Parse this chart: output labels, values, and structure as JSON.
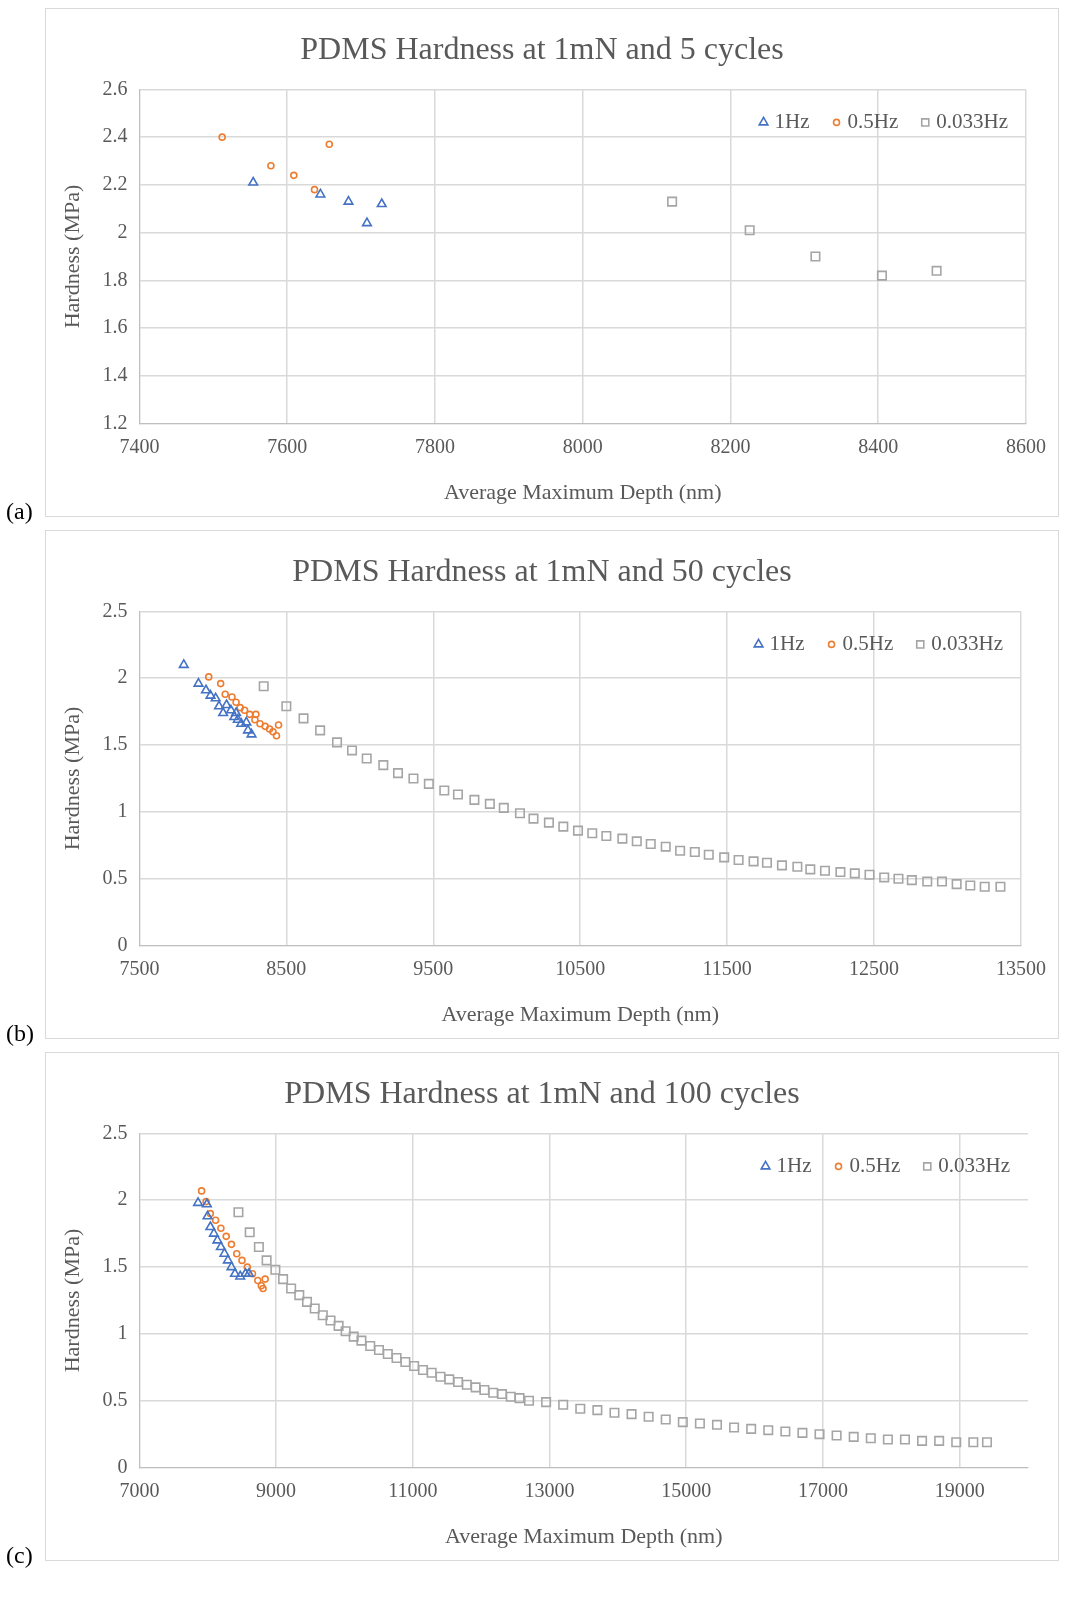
{
  "chart_data": [
    {
      "type": "scatter",
      "title": "PDMS Hardness at 1mN and 5 cycles",
      "xlabel": "Average Maximum Depth (nm)",
      "ylabel": "Hardness (MPa)",
      "annotations": [
        "(a)"
      ],
      "xlim": [
        7400,
        8600
      ],
      "xticks": [
        7400,
        7600,
        7800,
        8000,
        8200,
        8400,
        8600
      ],
      "ylim": [
        1.2,
        2.6
      ],
      "yticks": [
        1.2,
        1.4,
        1.6,
        1.8,
        2,
        2.2,
        2.4,
        2.6
      ],
      "grid": true,
      "legend": "top right",
      "series": [
        {
          "name": "1Hz",
          "color": "#4472c4",
          "marker": "triangle",
          "x": [
            7554,
            7645,
            7683,
            7708,
            7728
          ],
          "values": [
            2.21,
            2.16,
            2.13,
            2.04,
            2.12
          ]
        },
        {
          "name": "0.5Hz",
          "color": "#ed7d31",
          "marker": "circle",
          "x": [
            7512,
            7578,
            7609,
            7637,
            7657
          ],
          "values": [
            2.4,
            2.28,
            2.24,
            2.18,
            2.37
          ]
        },
        {
          "name": "0.033Hz",
          "color": "#a5a5a5",
          "marker": "square",
          "x": [
            8121,
            8226,
            8315,
            8405,
            8479
          ],
          "values": [
            2.13,
            2.01,
            1.9,
            1.82,
            1.84
          ]
        }
      ]
    },
    {
      "type": "scatter",
      "title": "PDMS Hardness at 1mN and 50 cycles",
      "xlabel": "Average Maximum Depth (nm)",
      "ylabel": "Hardness (MPa)",
      "annotations": [
        "(b)"
      ],
      "xlim": [
        7500,
        13500
      ],
      "xticks": [
        7500,
        8500,
        9500,
        10500,
        11500,
        12500,
        13500
      ],
      "ylim": [
        0,
        2.5
      ],
      "yticks": [
        0,
        0.5,
        1,
        1.5,
        2,
        2.5
      ],
      "grid": true,
      "legend": "top right",
      "series": [
        {
          "name": "1Hz",
          "color": "#4472c4",
          "marker": "triangle",
          "x": [
            7802,
            7902,
            7953,
            7984,
            8019,
            8042,
            8070,
            8093,
            8123,
            8146,
            8158,
            8170,
            8193,
            8228,
            8239,
            8263
          ],
          "values": [
            2.1,
            1.96,
            1.91,
            1.87,
            1.85,
            1.79,
            1.74,
            1.8,
            1.76,
            1.71,
            1.74,
            1.69,
            1.66,
            1.67,
            1.61,
            1.58
          ]
        },
        {
          "name": "0.5Hz",
          "color": "#ed7d31",
          "marker": "circle",
          "x": [
            7972,
            8053,
            8084,
            8130,
            8158,
            8186,
            8216,
            8251,
            8286,
            8293,
            8321,
            8356,
            8386,
            8409,
            8433,
            8447
          ],
          "values": [
            2.01,
            1.96,
            1.88,
            1.86,
            1.82,
            1.78,
            1.76,
            1.73,
            1.69,
            1.73,
            1.66,
            1.64,
            1.62,
            1.6,
            1.57,
            1.65
          ]
        },
        {
          "name": "0.033Hz",
          "color": "#a5a5a5",
          "marker": "square",
          "x": [
            8346,
            8500,
            8617,
            8730,
            8845,
            8947,
            9047,
            9160,
            9260,
            9365,
            9470,
            9575,
            9668,
            9780,
            9885,
            9980,
            10090,
            10182,
            10287,
            10385,
            10485,
            10582,
            10678,
            10787,
            10885,
            10980,
            11082,
            11180,
            11280,
            11375,
            11480,
            11578,
            11680,
            11771,
            11873,
            11978,
            12066,
            12166,
            12271,
            12369,
            12469,
            12569,
            12666,
            12757,
            12862,
            12962,
            13062,
            13155,
            13253,
            13360
          ],
          "values": [
            1.94,
            1.79,
            1.7,
            1.61,
            1.52,
            1.46,
            1.4,
            1.35,
            1.29,
            1.25,
            1.21,
            1.16,
            1.13,
            1.09,
            1.06,
            1.03,
            0.99,
            0.95,
            0.92,
            0.89,
            0.86,
            0.84,
            0.82,
            0.8,
            0.78,
            0.76,
            0.74,
            0.71,
            0.7,
            0.68,
            0.66,
            0.64,
            0.63,
            0.62,
            0.6,
            0.59,
            0.57,
            0.56,
            0.55,
            0.54,
            0.53,
            0.51,
            0.5,
            0.49,
            0.48,
            0.48,
            0.46,
            0.45,
            0.44,
            0.44
          ]
        }
      ]
    },
    {
      "type": "scatter",
      "title": "PDMS Hardness at 1mN and 100 cycles",
      "xlabel": "Average Maximum Depth (nm)",
      "ylabel": "Hardness (MPa)",
      "annotations": [
        "(c)"
      ],
      "xlim": [
        7000,
        20000
      ],
      "xticks": [
        7000,
        9000,
        11000,
        13000,
        15000,
        17000,
        19000
      ],
      "ylim": [
        0,
        2.5
      ],
      "yticks": [
        0,
        0.5,
        1,
        1.5,
        2,
        2.5
      ],
      "grid": true,
      "legend": "top right",
      "series": [
        {
          "name": "1Hz",
          "color": "#4472c4",
          "marker": "triangle",
          "x": [
            7858,
            7987,
            7997,
            8038,
            8090,
            8141,
            8192,
            8244,
            8295,
            8347,
            8398,
            8475,
            8552,
            8603
          ],
          "values": [
            1.98,
            1.97,
            1.88,
            1.8,
            1.75,
            1.7,
            1.65,
            1.6,
            1.55,
            1.5,
            1.45,
            1.43,
            1.45,
            1.45
          ]
        },
        {
          "name": "0.5Hz",
          "color": "#ed7d31",
          "marker": "circle",
          "x": [
            7910,
            7976,
            8038,
            8115,
            8192,
            8270,
            8347,
            8424,
            8501,
            8578,
            8655,
            8732,
            8784,
            8809,
            8840
          ],
          "values": [
            2.07,
            1.99,
            1.9,
            1.85,
            1.79,
            1.73,
            1.67,
            1.6,
            1.55,
            1.5,
            1.45,
            1.4,
            1.36,
            1.34,
            1.41
          ]
        },
        {
          "name": "0.033Hz",
          "color": "#a5a5a5",
          "marker": "square",
          "x": [
            8449,
            8614,
            8748,
            8861,
            8989,
            9102,
            9220,
            9339,
            9452,
            9565,
            9683,
            9796,
            9914,
            10017,
            10135,
            10248,
            10377,
            10505,
            10634,
            10762,
            10891,
            11019,
            11148,
            11276,
            11405,
            11533,
            11662,
            11790,
            11919,
            12047,
            12176,
            12304,
            12433,
            12561,
            12700,
            12950,
            13200,
            13450,
            13700,
            13950,
            14200,
            14450,
            14700,
            14950,
            15200,
            15450,
            15700,
            15950,
            16200,
            16450,
            16700,
            16950,
            17200,
            17450,
            17700,
            17950,
            18200,
            18450,
            18700,
            18950,
            19200,
            19400
          ],
          "values": [
            1.91,
            1.76,
            1.65,
            1.55,
            1.48,
            1.41,
            1.34,
            1.29,
            1.24,
            1.19,
            1.14,
            1.1,
            1.06,
            1.02,
            0.98,
            0.95,
            0.91,
            0.88,
            0.85,
            0.82,
            0.79,
            0.76,
            0.73,
            0.71,
            0.68,
            0.66,
            0.64,
            0.62,
            0.6,
            0.58,
            0.56,
            0.55,
            0.53,
            0.52,
            0.5,
            0.49,
            0.47,
            0.44,
            0.43,
            0.41,
            0.4,
            0.38,
            0.36,
            0.34,
            0.33,
            0.32,
            0.3,
            0.29,
            0.28,
            0.27,
            0.26,
            0.25,
            0.24,
            0.23,
            0.22,
            0.21,
            0.21,
            0.2,
            0.2,
            0.19,
            0.19,
            0.19
          ]
        }
      ]
    }
  ]
}
